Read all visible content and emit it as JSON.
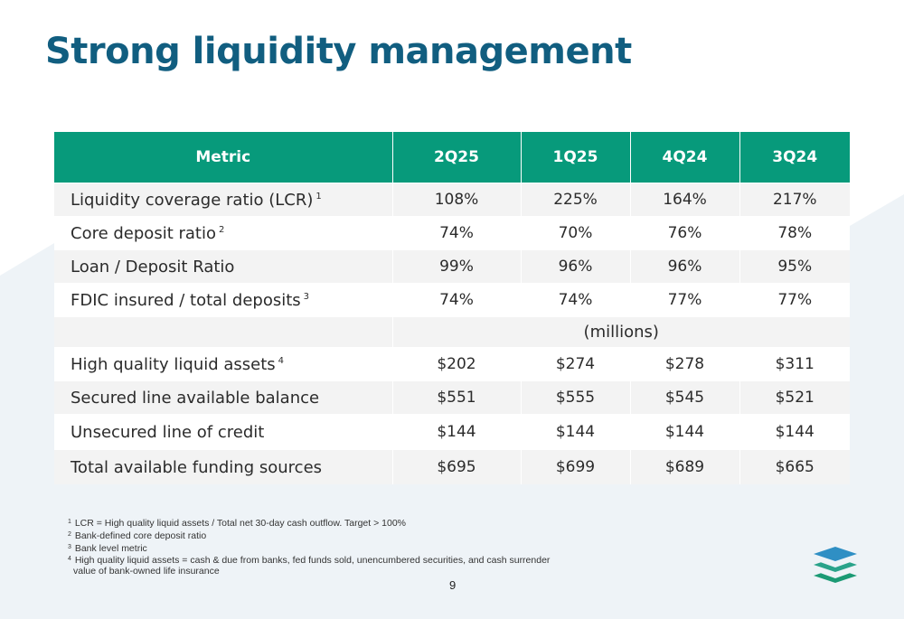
{
  "title": "Strong liquidity management",
  "table": {
    "headers": [
      "Metric",
      "2Q25",
      "1Q25",
      "4Q24",
      "3Q24"
    ],
    "rows_ratio": [
      {
        "label": "Liquidity coverage ratio (LCR)",
        "ref": "1",
        "values": [
          "108%",
          "225%",
          "164%",
          "217%"
        ]
      },
      {
        "label": "Core deposit ratio",
        "ref": "2",
        "values": [
          "74%",
          "70%",
          "76%",
          "78%"
        ]
      },
      {
        "label": "Loan / Deposit Ratio",
        "ref": "",
        "values": [
          "99%",
          "96%",
          "96%",
          "95%"
        ]
      },
      {
        "label": "FDIC insured / total deposits",
        "ref": "3",
        "values": [
          "74%",
          "74%",
          "77%",
          "77%"
        ]
      }
    ],
    "units_label": "(millions)",
    "rows_amount": [
      {
        "label": "High quality liquid assets",
        "ref": "4",
        "values": [
          "$202",
          "$274",
          "$278",
          "$311"
        ]
      },
      {
        "label": "Secured line available balance",
        "ref": "",
        "values": [
          "$551",
          "$555",
          "$545",
          "$521"
        ]
      },
      {
        "label": "Unsecured line of credit",
        "ref": "",
        "values": [
          "$144",
          "$144",
          "$144",
          "$144"
        ]
      },
      {
        "label": "Total available funding sources",
        "ref": "",
        "values": [
          "$695",
          "$699",
          "$689",
          "$665"
        ]
      }
    ]
  },
  "footnotes": [
    {
      "num": "1",
      "text": "LCR = High quality liquid assets / Total net 30-day cash outflow.  Target > 100%"
    },
    {
      "num": "2",
      "text": "Bank-defined core deposit ratio"
    },
    {
      "num": "3",
      "text": "Bank level metric"
    },
    {
      "num": "4",
      "text": "High quality liquid assets = cash & due from banks, fed funds sold, unencumbered securities, and cash surrender"
    }
  ],
  "footnote_continuation": "value of bank-owned life insurance",
  "page_number": "9",
  "colors": {
    "title": "#115e80",
    "header_bg": "#079a7b",
    "row_alt_bg": "#f3f3f3",
    "background_shape": "#eef3f7",
    "logo_blue": "#2f8fc4",
    "logo_green": "#1b9a74"
  },
  "logo_icon": "layers-icon"
}
